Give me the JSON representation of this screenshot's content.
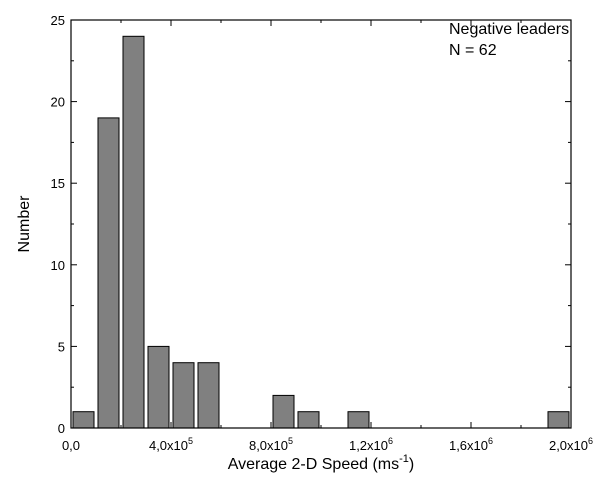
{
  "chart_data": {
    "type": "bar",
    "x": [
      50000,
      150000,
      250000,
      350000,
      450000,
      550000,
      650000,
      750000,
      850000,
      950000,
      1050000,
      1150000,
      1250000,
      1350000,
      1450000,
      1550000,
      1650000,
      1750000,
      1850000,
      1950000
    ],
    "values": [
      1,
      19,
      24,
      5,
      4,
      4,
      0,
      0,
      2,
      1,
      0,
      1,
      0,
      0,
      0,
      0,
      0,
      0,
      0,
      1
    ],
    "bin_width": 100000,
    "xlim": [
      0,
      2000000
    ],
    "ylim": [
      0,
      25
    ],
    "x_ticks": [
      {
        "value": 0,
        "mantissa": "0,0",
        "exp": ""
      },
      {
        "value": 400000,
        "mantissa": "4,0x10",
        "exp": "5"
      },
      {
        "value": 800000,
        "mantissa": "8,0x10",
        "exp": "5"
      },
      {
        "value": 1200000,
        "mantissa": "1,2x10",
        "exp": "6"
      },
      {
        "value": 1600000,
        "mantissa": "1,6x10",
        "exp": "6"
      },
      {
        "value": 2000000,
        "mantissa": "2,0x10",
        "exp": "6"
      }
    ],
    "y_ticks": [
      "0",
      "5",
      "10",
      "15",
      "20",
      "25"
    ],
    "xlabel": {
      "main": "Average 2-D Speed (ms",
      "sup": "-1",
      "close": ")"
    },
    "ylabel": "Number",
    "annotation": [
      "Negative leaders",
      "N = 62"
    ],
    "grid": false,
    "colors": {
      "bar_fill": "#808080",
      "bar_stroke": "#000000",
      "axis": "#000000"
    }
  }
}
